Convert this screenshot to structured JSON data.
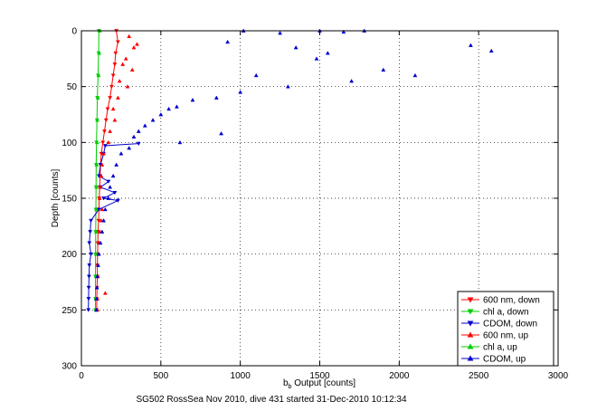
{
  "chart_data": {
    "type": "scatter",
    "title": "",
    "xlabel_main": "b",
    "xlabel_sub": "b",
    "xlabel_rest": " Output [counts]",
    "ylabel": "Depth [counts]",
    "footer": "SG502 RossSea Nov 2010, dive 431 started 31-Dec-2010 10:12:34",
    "xlim": [
      0,
      3000
    ],
    "ylim": [
      0,
      300
    ],
    "y_reversed": true,
    "grid": true,
    "legend_position": "bottom-right",
    "x_ticks": [
      "0",
      "500",
      "1000",
      "1500",
      "2000",
      "2500",
      "3000"
    ],
    "y_ticks": [
      "0",
      "50",
      "100",
      "150",
      "200",
      "250",
      "300"
    ],
    "series": [
      {
        "name": "600 nm, down",
        "color": "#ff0000",
        "marker": "triangle-down",
        "line": true,
        "depth_range": [
          0,
          250
        ],
        "points": [
          [
            220,
            0
          ],
          [
            230,
            10
          ],
          [
            215,
            20
          ],
          [
            210,
            30
          ],
          [
            200,
            40
          ],
          [
            190,
            50
          ],
          [
            180,
            60
          ],
          [
            165,
            70
          ],
          [
            155,
            80
          ],
          [
            145,
            90
          ],
          [
            135,
            100
          ],
          [
            125,
            110
          ],
          [
            120,
            120
          ],
          [
            118,
            130
          ],
          [
            115,
            140
          ],
          [
            112,
            150
          ],
          [
            110,
            160
          ],
          [
            108,
            170
          ],
          [
            105,
            180
          ],
          [
            103,
            190
          ],
          [
            102,
            200
          ],
          [
            100,
            210
          ],
          [
            100,
            220
          ],
          [
            98,
            230
          ],
          [
            97,
            240
          ],
          [
            96,
            250
          ]
        ]
      },
      {
        "name": "chl a, down",
        "color": "#00cc00",
        "marker": "triangle-down",
        "line": true,
        "depth_range": [
          0,
          250
        ],
        "points": [
          [
            110,
            0
          ],
          [
            108,
            20
          ],
          [
            105,
            40
          ],
          [
            100,
            60
          ],
          [
            98,
            80
          ],
          [
            95,
            100
          ],
          [
            93,
            120
          ],
          [
            92,
            140
          ],
          [
            91,
            160
          ],
          [
            90,
            180
          ],
          [
            89,
            200
          ],
          [
            88,
            220
          ],
          [
            88,
            240
          ],
          [
            88,
            250
          ]
        ]
      },
      {
        "name": "CDOM, down",
        "color": "#0000cc",
        "marker": "triangle-down",
        "line": true,
        "depth_range": [
          100,
          250
        ],
        "points": [
          [
            360,
            101
          ],
          [
            150,
            103
          ],
          [
            140,
            110
          ],
          [
            120,
            120
          ],
          [
            110,
            130
          ],
          [
            170,
            135
          ],
          [
            120,
            140
          ],
          [
            210,
            145
          ],
          [
            140,
            150
          ],
          [
            230,
            152
          ],
          [
            110,
            160
          ],
          [
            60,
            170
          ],
          [
            55,
            180
          ],
          [
            50,
            190
          ],
          [
            60,
            200
          ],
          [
            50,
            210
          ],
          [
            48,
            220
          ],
          [
            46,
            230
          ],
          [
            45,
            240
          ],
          [
            44,
            250
          ]
        ]
      },
      {
        "name": "600 nm, up",
        "color": "#ff0000",
        "marker": "triangle-up",
        "line": false,
        "depth_range": [
          0,
          250
        ],
        "points": [
          [
            300,
            5
          ],
          [
            330,
            15
          ],
          [
            280,
            25
          ],
          [
            350,
            12
          ],
          [
            260,
            30
          ],
          [
            320,
            35
          ],
          [
            240,
            45
          ],
          [
            290,
            50
          ],
          [
            230,
            60
          ],
          [
            200,
            70
          ],
          [
            210,
            80
          ],
          [
            180,
            90
          ],
          [
            170,
            100
          ],
          [
            140,
            110
          ],
          [
            130,
            120
          ],
          [
            125,
            130
          ],
          [
            120,
            140
          ],
          [
            115,
            150
          ],
          [
            130,
            160
          ],
          [
            125,
            170
          ],
          [
            115,
            180
          ],
          [
            110,
            190
          ],
          [
            108,
            200
          ],
          [
            105,
            210
          ],
          [
            104,
            220
          ],
          [
            150,
            235
          ],
          [
            100,
            240
          ],
          [
            100,
            250
          ]
        ]
      },
      {
        "name": "chl a, up",
        "color": "#00cc00",
        "marker": "triangle-up",
        "line": false,
        "depth_range": [
          0,
          250
        ],
        "points": [
          [
            115,
            0
          ],
          [
            112,
            20
          ],
          [
            108,
            40
          ],
          [
            104,
            60
          ],
          [
            100,
            80
          ],
          [
            98,
            100
          ],
          [
            96,
            120
          ],
          [
            95,
            140
          ],
          [
            94,
            160
          ],
          [
            93,
            180
          ],
          [
            92,
            200
          ],
          [
            92,
            220
          ],
          [
            91,
            240
          ],
          [
            91,
            250
          ]
        ]
      },
      {
        "name": "CDOM, up",
        "color": "#0000cc",
        "marker": "triangle-up",
        "line": false,
        "depth_range": [
          0,
          250
        ],
        "points": [
          [
            1020,
            0
          ],
          [
            1250,
            2
          ],
          [
            1500,
            0
          ],
          [
            1650,
            1
          ],
          [
            1780,
            0
          ],
          [
            2450,
            13
          ],
          [
            2580,
            18
          ],
          [
            920,
            10
          ],
          [
            1350,
            15
          ],
          [
            1480,
            25
          ],
          [
            1550,
            20
          ],
          [
            1900,
            35
          ],
          [
            2100,
            40
          ],
          [
            1700,
            45
          ],
          [
            1300,
            50
          ],
          [
            1100,
            40
          ],
          [
            1000,
            55
          ],
          [
            850,
            60
          ],
          [
            700,
            62
          ],
          [
            600,
            68
          ],
          [
            550,
            70
          ],
          [
            500,
            75
          ],
          [
            450,
            80
          ],
          [
            400,
            85
          ],
          [
            360,
            90
          ],
          [
            330,
            95
          ],
          [
            620,
            100
          ],
          [
            880,
            92
          ],
          [
            300,
            105
          ],
          [
            250,
            110
          ],
          [
            220,
            120
          ],
          [
            200,
            130
          ],
          [
            180,
            140
          ],
          [
            170,
            150
          ],
          [
            150,
            160
          ],
          [
            140,
            170
          ],
          [
            130,
            180
          ],
          [
            120,
            190
          ],
          [
            110,
            200
          ],
          [
            105,
            210
          ],
          [
            100,
            220
          ],
          [
            98,
            230
          ],
          [
            95,
            240
          ],
          [
            94,
            250
          ]
        ]
      }
    ]
  }
}
